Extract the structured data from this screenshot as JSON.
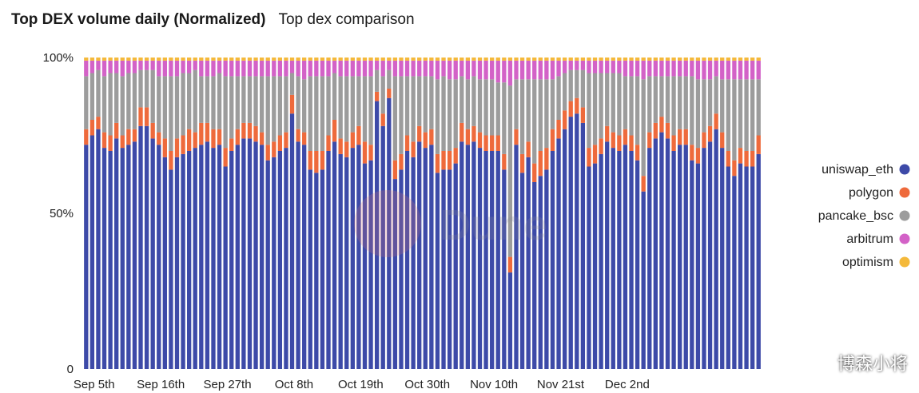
{
  "header": {
    "title": "Top DEX volume daily (Normalized)",
    "subtitle": "Top dex comparison"
  },
  "watermark_text": "Dune",
  "corner_text": "博森小将",
  "chart_data": {
    "type": "bar",
    "stacked": true,
    "normalized": true,
    "ylim": [
      0,
      100
    ],
    "yticks": [
      {
        "value": 0,
        "label": "0"
      },
      {
        "value": 50,
        "label": "50%"
      },
      {
        "value": 100,
        "label": "100%"
      }
    ],
    "x_tick_labels": [
      "Sep 5th",
      "Sep 16th",
      "Sep 27th",
      "Oct 8th",
      "Oct 19th",
      "Oct 30th",
      "Nov 10th",
      "Nov 21st",
      "Dec 2nd"
    ],
    "x_tick_every": 11,
    "legend_position": "right",
    "colors": {
      "uniswap_eth": "#3d4aa8",
      "polygon": "#ee6a3c",
      "pancake_bsc": "#9c9c9c",
      "arbitrum": "#d362c7",
      "optimism": "#f4b93b"
    },
    "series": [
      {
        "name": "uniswap_eth",
        "values": [
          72,
          75,
          77,
          71,
          70,
          74,
          71,
          72,
          73,
          78,
          78,
          74,
          72,
          68,
          64,
          68,
          69,
          70,
          71,
          72,
          73,
          71,
          72,
          65,
          70,
          72,
          74,
          74,
          73,
          72,
          67,
          68,
          70,
          71,
          82,
          73,
          72,
          64,
          63,
          64,
          70,
          73,
          69,
          68,
          71,
          72,
          66,
          67,
          86,
          78,
          87,
          61,
          64,
          70,
          68,
          73,
          71,
          72,
          63,
          64,
          64,
          66,
          73,
          72,
          73,
          71,
          70,
          70,
          70,
          64,
          31,
          72,
          63,
          68,
          60,
          62,
          64,
          70,
          74,
          77,
          81,
          82,
          79,
          65,
          66,
          69,
          73,
          71,
          70,
          72,
          70,
          67,
          57,
          71,
          74,
          76,
          74,
          70,
          72,
          72,
          67,
          66,
          71,
          73,
          77,
          71,
          65,
          62,
          66,
          65,
          65,
          69
        ]
      },
      {
        "name": "polygon",
        "values": [
          5,
          5,
          4,
          5,
          5,
          5,
          4,
          5,
          4,
          6,
          6,
          5,
          4,
          6,
          6,
          6,
          6,
          7,
          5,
          7,
          6,
          6,
          5,
          6,
          4,
          5,
          5,
          5,
          5,
          4,
          5,
          5,
          5,
          5,
          6,
          4,
          4,
          6,
          7,
          6,
          5,
          7,
          5,
          5,
          5,
          6,
          7,
          5,
          3,
          4,
          3,
          6,
          5,
          5,
          5,
          5,
          5,
          5,
          6,
          6,
          6,
          5,
          6,
          5,
          5,
          5,
          5,
          5,
          5,
          5,
          5,
          5,
          6,
          5,
          6,
          8,
          7,
          7,
          6,
          6,
          5,
          5,
          5,
          6,
          6,
          5,
          5,
          5,
          5,
          5,
          5,
          5,
          5,
          5,
          5,
          5,
          5,
          5,
          5,
          5,
          5,
          5,
          5,
          5,
          5,
          5,
          5,
          5,
          5,
          5,
          5,
          6
        ]
      },
      {
        "name": "pancake_bsc",
        "values": [
          17,
          15,
          15,
          18,
          20,
          16,
          19,
          18,
          18,
          12,
          12,
          17,
          18,
          20,
          24,
          20,
          20,
          18,
          20,
          15,
          15,
          17,
          18,
          23,
          20,
          17,
          15,
          15,
          16,
          18,
          22,
          21,
          19,
          18,
          7,
          17,
          17,
          24,
          24,
          24,
          19,
          15,
          20,
          21,
          18,
          16,
          21,
          22,
          7,
          12,
          6,
          27,
          25,
          19,
          21,
          16,
          18,
          17,
          24,
          24,
          23,
          22,
          15,
          16,
          16,
          17,
          18,
          18,
          17,
          23,
          55,
          16,
          24,
          20,
          27,
          23,
          22,
          16,
          14,
          12,
          10,
          9,
          12,
          24,
          23,
          21,
          17,
          19,
          20,
          17,
          19,
          22,
          31,
          18,
          15,
          13,
          15,
          19,
          17,
          17,
          22,
          22,
          17,
          15,
          12,
          17,
          23,
          26,
          22,
          23,
          23,
          18
        ]
      },
      {
        "name": "arbitrum",
        "values": [
          5,
          4,
          3,
          5,
          4,
          4,
          5,
          4,
          4,
          3,
          3,
          3,
          5,
          5,
          5,
          5,
          4,
          4,
          3,
          5,
          5,
          5,
          4,
          5,
          5,
          5,
          5,
          5,
          5,
          5,
          5,
          5,
          5,
          5,
          4,
          5,
          6,
          5,
          5,
          5,
          5,
          4,
          5,
          5,
          5,
          5,
          5,
          5,
          3,
          5,
          3,
          5,
          5,
          5,
          5,
          5,
          5,
          5,
          6,
          5,
          6,
          6,
          5,
          6,
          5,
          6,
          6,
          6,
          7,
          7,
          8,
          6,
          6,
          6,
          6,
          6,
          6,
          6,
          5,
          4,
          3,
          3,
          3,
          4,
          4,
          4,
          4,
          4,
          4,
          5,
          5,
          5,
          6,
          5,
          5,
          5,
          5,
          5,
          5,
          5,
          5,
          6,
          6,
          6,
          5,
          6,
          6,
          6,
          6,
          6,
          6,
          6
        ]
      },
      {
        "name": "optimism",
        "values": [
          1,
          1,
          1,
          1,
          1,
          1,
          1,
          1,
          1,
          1,
          1,
          1,
          1,
          1,
          1,
          1,
          1,
          1,
          1,
          1,
          1,
          1,
          1,
          1,
          1,
          1,
          1,
          1,
          1,
          1,
          1,
          1,
          1,
          1,
          1,
          1,
          1,
          1,
          1,
          1,
          1,
          1,
          1,
          1,
          1,
          1,
          1,
          1,
          1,
          1,
          1,
          1,
          1,
          1,
          1,
          1,
          1,
          1,
          1,
          1,
          1,
          1,
          1,
          1,
          1,
          1,
          1,
          1,
          1,
          1,
          1,
          1,
          1,
          1,
          1,
          1,
          1,
          1,
          1,
          1,
          1,
          1,
          1,
          1,
          1,
          1,
          1,
          1,
          1,
          1,
          1,
          1,
          1,
          1,
          1,
          1,
          1,
          1,
          1,
          1,
          1,
          1,
          1,
          1,
          1,
          1,
          1,
          1,
          1,
          1,
          1,
          1
        ]
      }
    ]
  }
}
